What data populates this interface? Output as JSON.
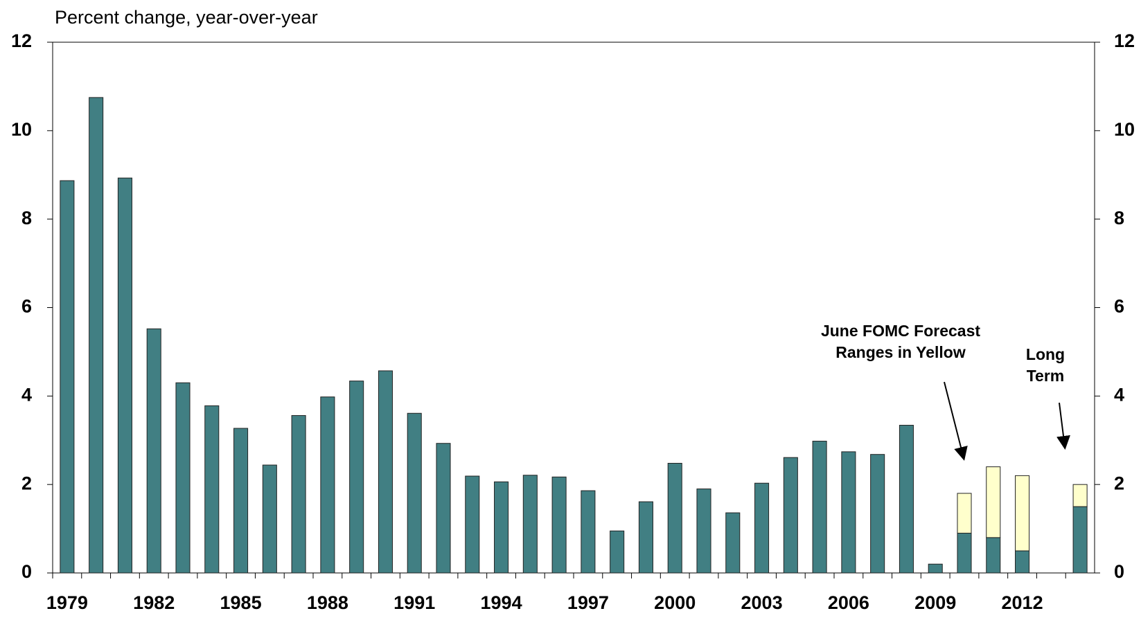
{
  "chart_data": {
    "type": "bar",
    "axis_label": "Percent change, year-over-year",
    "categories": [
      "1979",
      null,
      null,
      "1982",
      null,
      null,
      "1985",
      null,
      null,
      "1988",
      null,
      null,
      "1991",
      null,
      null,
      "1994",
      null,
      null,
      "1997",
      null,
      null,
      "2000",
      null,
      null,
      "2003",
      null,
      null,
      "2006",
      null,
      null,
      "2009",
      null,
      null,
      "2012",
      null,
      null
    ],
    "values": [
      8.87,
      10.75,
      8.93,
      5.52,
      4.3,
      3.78,
      3.27,
      2.44,
      3.56,
      3.98,
      4.34,
      4.57,
      3.61,
      2.93,
      2.19,
      2.06,
      2.21,
      2.17,
      1.86,
      0.95,
      1.61,
      2.48,
      1.9,
      1.36,
      2.03,
      2.61,
      2.98,
      2.74,
      2.68,
      3.34,
      0.2,
      0.9,
      0.8,
      0.5,
      null,
      1.5
    ],
    "range_values": [
      null,
      null,
      null,
      null,
      null,
      null,
      null,
      null,
      null,
      null,
      null,
      null,
      null,
      null,
      null,
      null,
      null,
      null,
      null,
      null,
      null,
      null,
      null,
      null,
      null,
      null,
      null,
      null,
      null,
      null,
      null,
      0.9,
      1.6,
      1.7,
      null,
      0.5
    ],
    "color": "#417f83",
    "range_color": "#ffffcc",
    "ylim": [
      0,
      12
    ],
    "yticks": [
      0,
      2,
      4,
      6,
      8,
      10,
      12
    ],
    "y2lim": [
      0,
      12
    ],
    "y2ticks": [
      0,
      2,
      4,
      6,
      8,
      10,
      12
    ],
    "annotations": [
      [
        "June FOMC Forecast",
        "Ranges in Yellow"
      ],
      [
        "Long",
        "Term"
      ]
    ]
  }
}
